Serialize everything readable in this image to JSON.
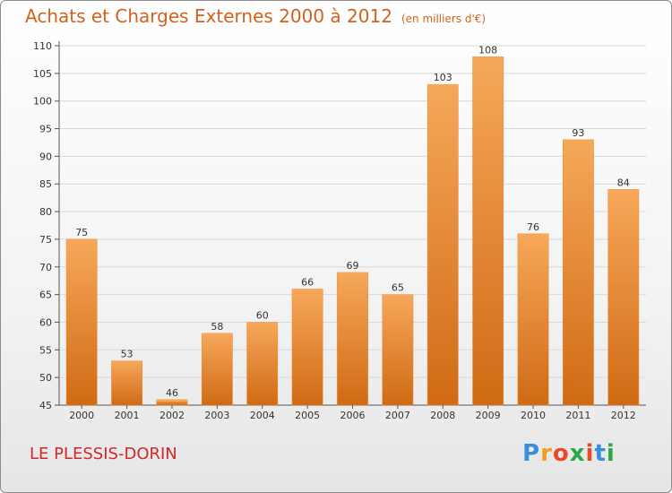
{
  "header": {
    "title": "Achats et Charges Externes 2000 à 2012",
    "subtitle": "(en milliers d'€)"
  },
  "footer": {
    "place": "LE PLESSIS-DORIN",
    "logo_letters": [
      "P",
      "r",
      "o",
      "x",
      "i",
      "t",
      "i"
    ],
    "logo_colors": [
      "#3a8fd6",
      "#f0a020",
      "#e84a2a",
      "#2aa84a",
      "#e84a2a",
      "#3a8fd6",
      "#2aa84a"
    ]
  },
  "chart_data": {
    "type": "bar",
    "categories": [
      "2000",
      "2001",
      "2002",
      "2003",
      "2004",
      "2005",
      "2006",
      "2007",
      "2008",
      "2009",
      "2010",
      "2011",
      "2012"
    ],
    "values": [
      75,
      53,
      46,
      58,
      60,
      66,
      69,
      65,
      103,
      108,
      76,
      93,
      84
    ],
    "data_labels": [
      "75",
      "53",
      "46",
      "58",
      "60",
      "66",
      "69",
      "65",
      "103",
      "108",
      "76",
      "93",
      "84"
    ],
    "title": "Achats et Charges Externes 2000 à 2012",
    "subtitle": "(en milliers d'€)",
    "ylim": [
      45,
      110
    ],
    "yticks": [
      45,
      50,
      55,
      60,
      65,
      70,
      75,
      80,
      85,
      90,
      95,
      100,
      105,
      110
    ],
    "ytick_labels": [
      "45",
      "50",
      "55",
      "60",
      "65",
      "70",
      "75",
      "80",
      "85",
      "90",
      "95",
      "100",
      "105",
      "110"
    ],
    "grid": "horizontal",
    "bar_color": "#f0872a",
    "bar_color_light": "#f6a85a",
    "bar_color_dark": "#d06a14",
    "grid_color": "#d8d8d8",
    "axis_color": "#555555"
  }
}
